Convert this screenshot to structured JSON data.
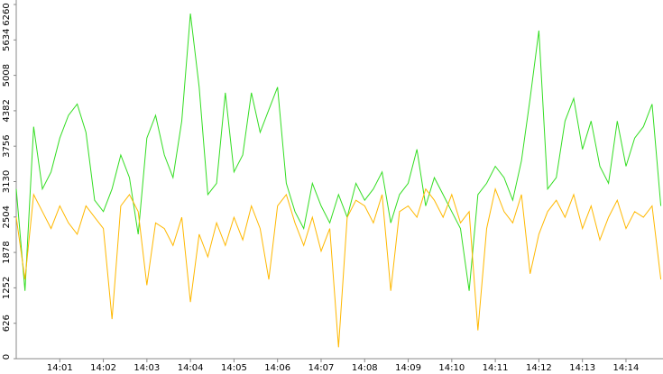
{
  "chart_data": {
    "type": "line",
    "x": [
      0,
      0.2,
      0.4,
      0.6,
      0.8,
      1,
      1.2,
      1.4,
      1.6,
      1.8,
      2,
      2.2,
      2.4,
      2.6,
      2.8,
      3,
      3.2,
      3.4,
      3.6,
      3.8,
      4,
      4.2,
      4.4,
      4.6,
      4.8,
      5,
      5.2,
      5.4,
      5.6,
      5.8,
      6,
      6.2,
      6.4,
      6.6,
      6.8,
      7,
      7.2,
      7.4,
      7.6,
      7.8,
      8,
      8.2,
      8.4,
      8.6,
      8.8,
      9,
      9.2,
      9.4,
      9.6,
      9.8,
      10,
      10.2,
      10.4,
      10.6,
      10.8,
      11,
      11.2,
      11.4,
      11.6,
      11.8,
      12,
      12.2,
      12.4,
      12.6,
      12.8,
      13,
      13.2,
      13.4,
      13.6,
      13.8,
      14,
      14.2,
      14.4,
      14.6,
      14.8
    ],
    "series": [
      {
        "color": "#33dd22",
        "values": [
          3000,
          1200,
          4100,
          3000,
          3300,
          3900,
          4300,
          4500,
          4000,
          2800,
          2600,
          3000,
          3600,
          3200,
          2200,
          3900,
          4300,
          3600,
          3200,
          4200,
          6100,
          4800,
          2900,
          3100,
          4700,
          3300,
          3600,
          4700,
          4000,
          4400,
          4800,
          3100,
          2600,
          2300,
          3100,
          2700,
          2400,
          2900,
          2500,
          3100,
          2800,
          3000,
          3300,
          2400,
          2900,
          3100,
          3700,
          2700,
          3200,
          2900,
          2600,
          2300,
          1200,
          2900,
          3100,
          3400,
          3200,
          2800,
          3500,
          4600,
          5800,
          3000,
          3200,
          4200,
          4600,
          3700,
          4200,
          3400,
          3100,
          4200,
          3400,
          3900,
          4100,
          4500,
          2700
        ]
      },
      {
        "color": "#ffb800",
        "values": [
          2500,
          1400,
          2900,
          2600,
          2300,
          2700,
          2400,
          2200,
          2700,
          2500,
          2300,
          700,
          2700,
          2900,
          2600,
          1300,
          2400,
          2300,
          2000,
          2500,
          1000,
          2200,
          1800,
          2400,
          2000,
          2500,
          2100,
          2700,
          2300,
          1400,
          2700,
          2900,
          2400,
          2000,
          2500,
          1900,
          2300,
          200,
          2500,
          2800,
          2700,
          2400,
          2900,
          1200,
          2600,
          2700,
          2500,
          3000,
          2800,
          2500,
          2900,
          2400,
          2600,
          500,
          2300,
          3000,
          2600,
          2400,
          2900,
          1500,
          2200,
          2600,
          2800,
          2500,
          2900,
          2300,
          2700,
          2100,
          2500,
          2800,
          2300,
          2600,
          2500,
          2700,
          1400
        ]
      }
    ],
    "xlim": [
      0,
      14.85
    ],
    "xticks": [
      {
        "value": 1,
        "label": "14:01"
      },
      {
        "value": 2,
        "label": "14:02"
      },
      {
        "value": 3,
        "label": "14:03"
      },
      {
        "value": 4,
        "label": "14:04"
      },
      {
        "value": 5,
        "label": "14:05"
      },
      {
        "value": 6,
        "label": "14:06"
      },
      {
        "value": 7,
        "label": "14:07"
      },
      {
        "value": 8,
        "label": "14:08"
      },
      {
        "value": 9,
        "label": "14:09"
      },
      {
        "value": 10,
        "label": "14:10"
      },
      {
        "value": 11,
        "label": "14:11"
      },
      {
        "value": 12,
        "label": "14:12"
      },
      {
        "value": 13,
        "label": "14:13"
      },
      {
        "value": 14,
        "label": "14:14"
      }
    ],
    "ylim": [
      0,
      6260
    ],
    "yticks": [
      0,
      626,
      1252,
      1878,
      2504,
      3130,
      3756,
      4382,
      5008,
      5634,
      6260
    ]
  }
}
